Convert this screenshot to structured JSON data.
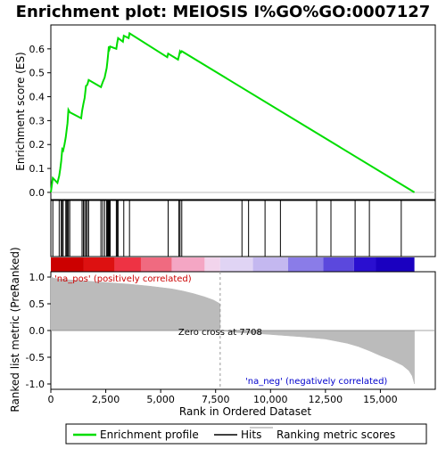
{
  "chart_data": {
    "type": "line",
    "title": "Enrichment plot: MEIOSIS I%GO%GO:0007127",
    "top_panel": {
      "ylabel": "Enrichment score (ES)",
      "ylim": [
        -0.03,
        0.7
      ],
      "yticks": [
        0.0,
        0.1,
        0.2,
        0.3,
        0.4,
        0.5,
        0.6
      ],
      "ytick_labels": [
        "0.0",
        "0.1",
        "0.2",
        "0.3",
        "0.4",
        "0.5",
        "0.6"
      ],
      "series": [
        {
          "name": "Enrichment profile",
          "color": "#00dd00",
          "x": [
            0,
            90,
            300,
            380,
            430,
            470,
            520,
            560,
            620,
            680,
            720,
            760,
            800,
            860,
            1380,
            1420,
            1480,
            1540,
            1600,
            1660,
            1720,
            2280,
            2360,
            2450,
            2540,
            2580,
            2610,
            2640,
            2670,
            2700,
            2980,
            3020,
            3060,
            3280,
            3320,
            3540,
            3580,
            5300,
            5340,
            5790,
            5830,
            5880,
            5920,
            5960,
            16550
          ],
          "y": [
            0.0,
            0.06,
            0.04,
            0.07,
            0.1,
            0.13,
            0.18,
            0.175,
            0.2,
            0.23,
            0.26,
            0.29,
            0.345,
            0.335,
            0.31,
            0.34,
            0.37,
            0.395,
            0.445,
            0.45,
            0.47,
            0.44,
            0.46,
            0.48,
            0.52,
            0.55,
            0.58,
            0.61,
            0.6,
            0.61,
            0.6,
            0.625,
            0.645,
            0.63,
            0.655,
            0.645,
            0.665,
            0.565,
            0.58,
            0.555,
            0.57,
            0.59,
            0.585,
            0.59,
            0.0
          ]
        }
      ]
    },
    "hits": {
      "name": "Hits",
      "positions": [
        90,
        380,
        470,
        520,
        560,
        680,
        720,
        760,
        800,
        860,
        1420,
        1480,
        1540,
        1600,
        1660,
        1720,
        2280,
        2360,
        2450,
        2540,
        2580,
        2610,
        2640,
        2670,
        2700,
        2980,
        3020,
        3060,
        3320,
        3580,
        5340,
        5830,
        5880,
        5960,
        8700,
        9000,
        9750,
        10450,
        12100,
        12750,
        13850,
        14500,
        15950
      ]
    },
    "bottom_panel": {
      "xlabel": "Rank in Ordered Dataset",
      "ylabel": "Ranked list metric (PreRanked)",
      "xlim": [
        0,
        17500
      ],
      "ylim": [
        -1.1,
        1.1
      ],
      "xticks": [
        0,
        2500,
        5000,
        7500,
        10000,
        12500,
        15000
      ],
      "xtick_labels": [
        "0",
        "2,500",
        "5,000",
        "7,500",
        "10,000",
        "12,500",
        "15,000"
      ],
      "yticks": [
        -1.0,
        -0.5,
        0.0,
        0.5,
        1.0
      ],
      "ytick_labels": [
        "-1.0",
        "-0.5",
        "0.0",
        "0.5",
        "1.0"
      ],
      "metric_x": [
        0,
        40,
        120,
        300,
        800,
        1500,
        2500,
        3500,
        4500,
        5500,
        6000,
        6500,
        7000,
        7400,
        7708,
        7709,
        8500,
        9500,
        10500,
        11500,
        12500,
        13500,
        14000,
        14500,
        15000,
        15500,
        16000,
        16300,
        16450,
        16550
      ],
      "metric_y": [
        1.0,
        1.0,
        0.98,
        0.97,
        0.95,
        0.93,
        0.9,
        0.87,
        0.83,
        0.78,
        0.74,
        0.69,
        0.63,
        0.57,
        0.5,
        0.0,
        -0.04,
        -0.06,
        -0.09,
        -0.12,
        -0.16,
        -0.24,
        -0.3,
        -0.38,
        -0.47,
        -0.55,
        -0.65,
        -0.75,
        -0.85,
        -1.0
      ],
      "zero_cross_rank": 7708,
      "zero_cross_label": "Zero cross at 7708",
      "pos_label": "'na_pos' (positively correlated)",
      "neg_label": "'na_neg' (negatively correlated)",
      "pos_label_color": "#cc0000",
      "neg_label_color": "#0000cc",
      "metric_color": "#bbbbbb"
    },
    "colorbar_stops": [
      "#cc0000",
      "#dd1111",
      "#ee3344",
      "#f06a80",
      "#f4a6c4",
      "#f2d4ec",
      "#e0d4f4",
      "#c4b8f0",
      "#8a7ce8",
      "#5b48dd",
      "#2a0fd0",
      "#1a00c0"
    ],
    "colorbar_breaks": [
      0,
      1500,
      2900,
      4100,
      5500,
      7000,
      7708,
      9200,
      10800,
      12400,
      13800,
      14800,
      16550
    ],
    "legend": {
      "placement": "bottom",
      "items": [
        {
          "label": "Enrichment profile",
          "color": "#00dd00"
        },
        {
          "label": "Hits",
          "color": "#000000"
        },
        {
          "label": "Ranking metric scores",
          "color": "#bbbbbb"
        }
      ]
    }
  }
}
